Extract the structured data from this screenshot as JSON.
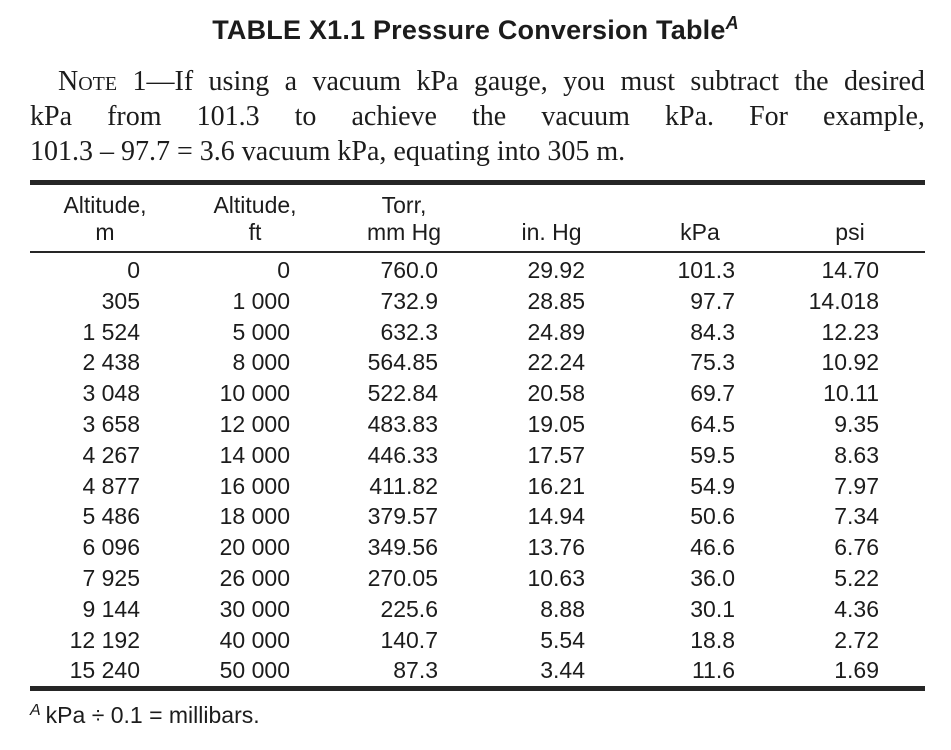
{
  "title": {
    "text": "TABLE X1.1 Pressure Conversion Table",
    "superscript": "A"
  },
  "note": {
    "line1": "Note 1—If using a vacuum kPa gauge, you must subtract the desired",
    "line2": "kPa from 101.3 to achieve the vacuum kPa. For example,",
    "line3": "101.3 – 97.7 = 3.6 vacuum kPa, equating into 305 m."
  },
  "table": {
    "columns": [
      {
        "line1": "Altitude,",
        "line2": "m"
      },
      {
        "line1": "Altitude,",
        "line2": "ft"
      },
      {
        "line1": "Torr,",
        "line2": "mm Hg"
      },
      {
        "line1": "",
        "line2": "in. Hg"
      },
      {
        "line1": "",
        "line2": "kPa"
      },
      {
        "line1": "",
        "line2": "psi"
      }
    ],
    "rows": [
      [
        "0",
        "0",
        "760.0",
        "29.92",
        "101.3",
        "14.70"
      ],
      [
        "305",
        "1 000",
        "732.9",
        "28.85",
        "97.7",
        "14.018"
      ],
      [
        "1 524",
        "5 000",
        "632.3",
        "24.89",
        "84.3",
        "12.23"
      ],
      [
        "2 438",
        "8 000",
        "564.85",
        "22.24",
        "75.3",
        "10.92"
      ],
      [
        "3 048",
        "10 000",
        "522.84",
        "20.58",
        "69.7",
        "10.11"
      ],
      [
        "3 658",
        "12 000",
        "483.83",
        "19.05",
        "64.5",
        "9.35"
      ],
      [
        "4 267",
        "14 000",
        "446.33",
        "17.57",
        "59.5",
        "8.63"
      ],
      [
        "4 877",
        "16 000",
        "411.82",
        "16.21",
        "54.9",
        "7.97"
      ],
      [
        "5 486",
        "18 000",
        "379.57",
        "14.94",
        "50.6",
        "7.34"
      ],
      [
        "6 096",
        "20 000",
        "349.56",
        "13.76",
        "46.6",
        "6.76"
      ],
      [
        "7 925",
        "26 000",
        "270.05",
        "10.63",
        "36.0",
        "5.22"
      ],
      [
        "9 144",
        "30 000",
        "225.6",
        "8.88",
        "30.1",
        "4.36"
      ],
      [
        "12 192",
        "40 000",
        "140.7",
        "5.54",
        "18.8",
        "2.72"
      ],
      [
        "15 240",
        "50 000",
        "87.3",
        "3.44",
        "11.6",
        "1.69"
      ]
    ]
  },
  "footnote": {
    "superscript": "A",
    "text": "kPa ÷ 0.1 = millibars."
  },
  "colors": {
    "text": "#1c1c1c",
    "rule": "#262626",
    "background": "#ffffff"
  }
}
